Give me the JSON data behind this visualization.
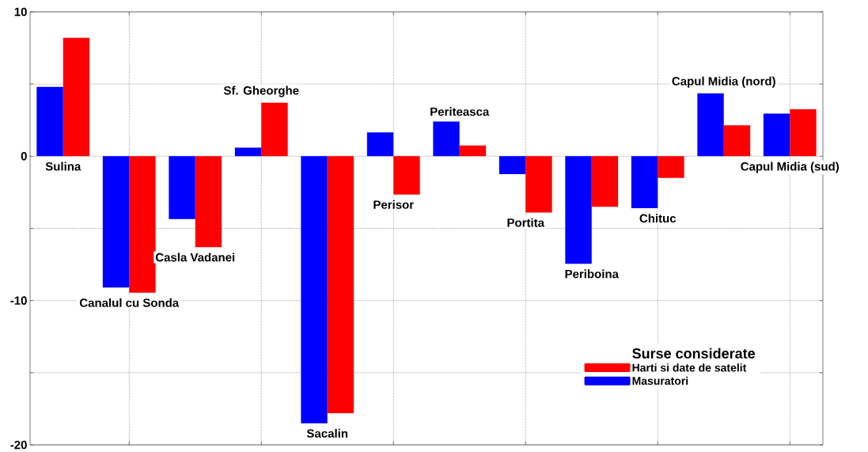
{
  "chart_data": {
    "type": "bar",
    "categories": [
      "Sulina",
      "Canalul cu Sonda",
      "Casla Vadanei",
      "Sf. Gheorghe",
      "Sacalin",
      "Perisor",
      "Periteasca",
      "Portita",
      "Periboina",
      "Chituc",
      "Capul Midia (nord)",
      "Capul Midia (sud)"
    ],
    "series": [
      {
        "name": "Masuratori",
        "color": "#0000ff",
        "values": [
          4.8,
          -9.1,
          -4.35,
          0.6,
          -18.5,
          1.65,
          2.4,
          -1.25,
          -7.45,
          -3.6,
          4.35,
          2.95
        ]
      },
      {
        "name": "Harti si date de satelit",
        "color": "#ff0000",
        "values": [
          8.2,
          -9.45,
          -6.3,
          3.7,
          -17.8,
          -2.65,
          0.75,
          -3.9,
          -3.5,
          -1.5,
          2.15,
          3.25
        ]
      }
    ],
    "ylim": [
      -20,
      10
    ],
    "yticks": [
      -20,
      {
        "value": -15,
        "label": null
      },
      -10,
      {
        "value": -5,
        "label": null
      },
      0,
      {
        "value": 5,
        "label": null
      },
      10
    ],
    "grid": true,
    "legend": "bottom right",
    "legend_title": "Surse considerate"
  }
}
